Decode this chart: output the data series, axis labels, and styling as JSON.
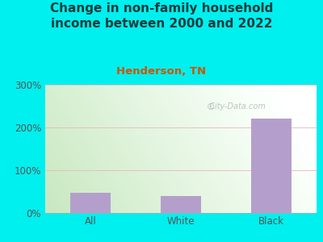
{
  "title": "Change in non-family household\nincome between 2000 and 2022",
  "subtitle": "Henderson, TN",
  "categories": [
    "All",
    "White",
    "Black"
  ],
  "values": [
    47,
    40,
    220
  ],
  "bar_color": "#b49fcc",
  "background_outer": "#00efef",
  "grad_color_topleft": "#d8f0d0",
  "grad_color_topright": "#f8fff8",
  "grad_color_bottomleft": "#c8e8c0",
  "grad_color_bottomright": "#f0f8f0",
  "title_color": "#1a3a3a",
  "subtitle_color": "#cc5500",
  "tick_label_color": "#555555",
  "grid_color": "#e8b8b8",
  "ylim": [
    0,
    300
  ],
  "yticks": [
    0,
    100,
    200,
    300
  ],
  "ytick_labels": [
    "0%",
    "100%",
    "200%",
    "300%"
  ],
  "title_fontsize": 11,
  "subtitle_fontsize": 9.5,
  "tick_fontsize": 8.5,
  "watermark": "City-Data.com"
}
